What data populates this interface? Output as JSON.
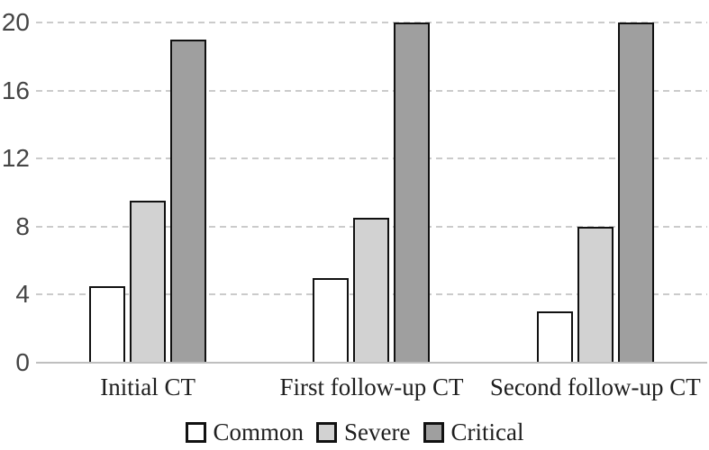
{
  "chart_data": {
    "type": "bar",
    "title": "",
    "xlabel": "",
    "ylabel": "",
    "categories": [
      "Initial CT",
      "First follow-up CT",
      "Second follow-up CT"
    ],
    "series": [
      {
        "name": "Common",
        "color": "#ffffff",
        "values": [
          4.5,
          5,
          3
        ]
      },
      {
        "name": "Severe",
        "color": "#d2d2d2",
        "values": [
          9.5,
          8.5,
          8
        ]
      },
      {
        "name": "Critical",
        "color": "#9f9f9f",
        "values": [
          19,
          20,
          20
        ]
      }
    ],
    "ylim": [
      0,
      20
    ],
    "yticks": [
      0,
      4,
      8,
      12,
      16,
      20
    ],
    "grid": "horizontal-dashed",
    "legend_position": "bottom",
    "bar_border_color": "#111111"
  }
}
